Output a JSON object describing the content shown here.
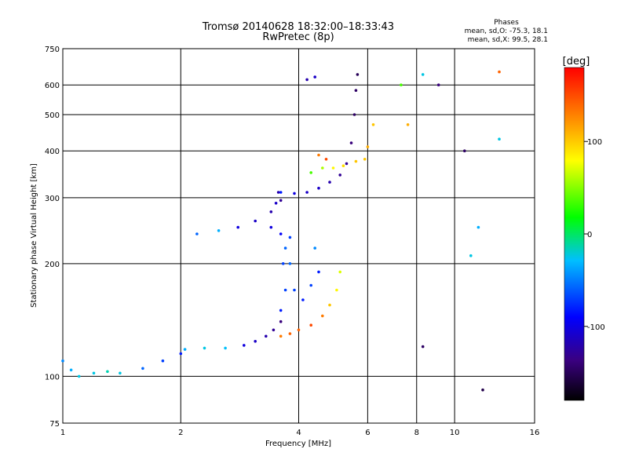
{
  "chart_data": {
    "type": "scatter",
    "title": "Tromsø 20140628 18:32:00–18:33:43",
    "subtitle": "RwPretec (8p)",
    "xlabel": "Frequency [MHz]",
    "ylabel": "Stationary phase Virtual Height [km]",
    "x_scale": "log",
    "y_scale": "log",
    "xlim": [
      1,
      16
    ],
    "ylim": [
      75,
      750
    ],
    "x_ticks": [
      1,
      2,
      4,
      6,
      8,
      10,
      16
    ],
    "y_ticks": [
      75,
      100,
      200,
      300,
      400,
      500,
      600,
      750
    ],
    "grid": true,
    "phase_box": {
      "title": "Phases",
      "line_o": "mean, sd,O:  -75.3, 18.1",
      "line_x": "mean, sd,X:  99.5, 28.1"
    },
    "colorbar": {
      "label": "[deg]",
      "range": [
        -180,
        180
      ],
      "ticks": [
        100,
        0,
        -100
      ],
      "colors": [
        "#000000",
        "#3a0080",
        "#0000ff",
        "#00bfff",
        "#00ff00",
        "#ffff00",
        "#ff7f00",
        "#ff0000"
      ]
    },
    "series": [
      {
        "values": [
          [
            1.0,
            110,
            -40
          ],
          [
            1.05,
            104,
            -30
          ],
          [
            1.1,
            100,
            -20
          ],
          [
            1.2,
            102,
            -20
          ],
          [
            1.3,
            103,
            -10
          ],
          [
            1.4,
            102,
            -20
          ],
          [
            1.6,
            105,
            -50
          ],
          [
            1.8,
            110,
            -60
          ],
          [
            2.0,
            115,
            -70
          ]
        ]
      },
      {
        "values": [
          [
            2.05,
            118,
            -30
          ],
          [
            2.3,
            119,
            -20
          ],
          [
            2.6,
            119,
            -25
          ],
          [
            2.9,
            121,
            -90
          ],
          [
            3.1,
            124,
            -100
          ],
          [
            3.3,
            128,
            -110
          ],
          [
            3.45,
            133,
            -120
          ],
          [
            3.6,
            140,
            -130
          ]
        ]
      },
      {
        "values": [
          [
            3.6,
            128,
            130
          ],
          [
            3.8,
            130,
            140
          ],
          [
            4.0,
            133,
            140
          ],
          [
            4.3,
            137,
            150
          ],
          [
            4.6,
            145,
            130
          ],
          [
            4.8,
            155,
            100
          ],
          [
            5.0,
            170,
            80
          ],
          [
            5.1,
            190,
            70
          ]
        ]
      },
      {
        "values": [
          [
            3.6,
            150,
            -70
          ],
          [
            3.7,
            170,
            -60
          ],
          [
            3.8,
            200,
            -50
          ],
          [
            3.9,
            170,
            -60
          ],
          [
            4.1,
            160,
            -70
          ],
          [
            4.3,
            175,
            -60
          ],
          [
            4.5,
            190,
            -70
          ],
          [
            4.4,
            220,
            -40
          ]
        ]
      },
      {
        "values": [
          [
            3.4,
            250,
            -90
          ],
          [
            3.5,
            290,
            -100
          ],
          [
            3.55,
            310,
            -110
          ],
          [
            3.6,
            240,
            -80
          ],
          [
            3.65,
            200,
            -60
          ],
          [
            3.7,
            220,
            -50
          ],
          [
            3.8,
            235,
            -60
          ]
        ]
      },
      {
        "values": [
          [
            2.2,
            240,
            -50
          ],
          [
            2.5,
            245,
            -30
          ],
          [
            2.8,
            250,
            -90
          ],
          [
            3.1,
            260,
            -100
          ],
          [
            3.4,
            275,
            -110
          ],
          [
            3.6,
            295,
            -120
          ]
        ]
      },
      {
        "values": [
          [
            3.6,
            310,
            -70
          ],
          [
            3.9,
            308,
            -90
          ],
          [
            4.2,
            310,
            -100
          ],
          [
            4.5,
            318,
            -100
          ],
          [
            4.8,
            330,
            -110
          ],
          [
            5.1,
            345,
            -120
          ],
          [
            5.3,
            370,
            -120
          ],
          [
            5.45,
            420,
            -130
          ],
          [
            5.55,
            500,
            -140
          ],
          [
            5.6,
            580,
            -140
          ],
          [
            5.65,
            640,
            -145
          ]
        ]
      },
      {
        "values": [
          [
            4.3,
            350,
            40
          ],
          [
            4.6,
            360,
            60
          ],
          [
            4.9,
            360,
            80
          ],
          [
            5.2,
            365,
            90
          ],
          [
            5.6,
            375,
            100
          ],
          [
            5.9,
            380,
            100
          ],
          [
            6.0,
            410,
            110
          ]
        ]
      },
      {
        "values": [
          [
            4.5,
            390,
            130
          ],
          [
            4.7,
            380,
            150
          ],
          [
            4.2,
            620,
            -110
          ],
          [
            4.4,
            630,
            -100
          ],
          [
            6.2,
            470,
            100
          ],
          [
            7.3,
            600,
            40
          ],
          [
            7.6,
            470,
            110
          ],
          [
            8.3,
            640,
            -20
          ],
          [
            8.3,
            120,
            -140
          ],
          [
            9.1,
            600,
            -130
          ],
          [
            10.6,
            400,
            -140
          ],
          [
            11.0,
            210,
            -20
          ],
          [
            11.5,
            250,
            -30
          ],
          [
            13.0,
            650,
            140
          ],
          [
            13.0,
            430,
            -20
          ],
          [
            11.8,
            92,
            -150
          ]
        ]
      }
    ]
  }
}
